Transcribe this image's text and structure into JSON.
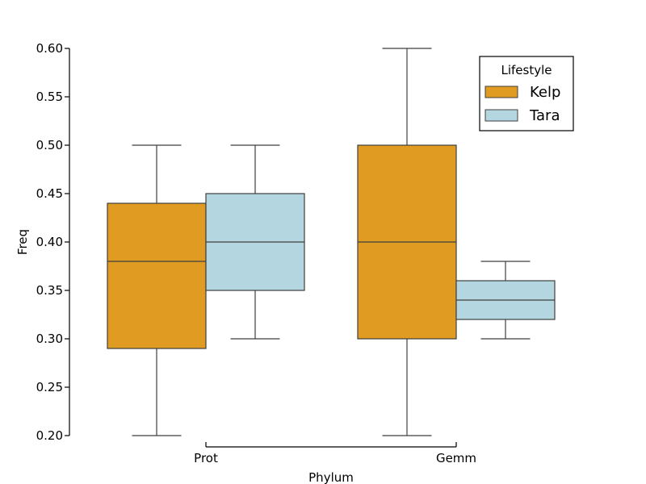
{
  "chart_data": {
    "type": "box",
    "xlabel": "Phylum",
    "ylabel": "Freq",
    "ylim": [
      0.2,
      0.6
    ],
    "yticks": [
      "0.20",
      "0.25",
      "0.30",
      "0.35",
      "0.40",
      "0.45",
      "0.50",
      "0.55",
      "0.60"
    ],
    "categories": [
      "Prot",
      "Gemm"
    ],
    "legend": {
      "title": "Lifestyle",
      "position": "top-right"
    },
    "series": [
      {
        "name": "Kelp",
        "color": "#E09C22",
        "boxes": [
          {
            "category": "Prot",
            "min": 0.2,
            "q1": 0.29,
            "median": 0.38,
            "q3": 0.44,
            "max": 0.5
          },
          {
            "category": "Gemm",
            "min": 0.2,
            "q1": 0.3,
            "median": 0.4,
            "q3": 0.5,
            "max": 0.6
          }
        ]
      },
      {
        "name": "Tara",
        "color": "#B4D6E0",
        "boxes": [
          {
            "category": "Prot",
            "min": 0.3,
            "q1": 0.35,
            "median": 0.4,
            "q3": 0.45,
            "max": 0.5
          },
          {
            "category": "Gemm",
            "min": 0.3,
            "q1": 0.32,
            "median": 0.34,
            "q3": 0.36,
            "max": 0.38
          }
        ]
      }
    ],
    "grid": false
  }
}
